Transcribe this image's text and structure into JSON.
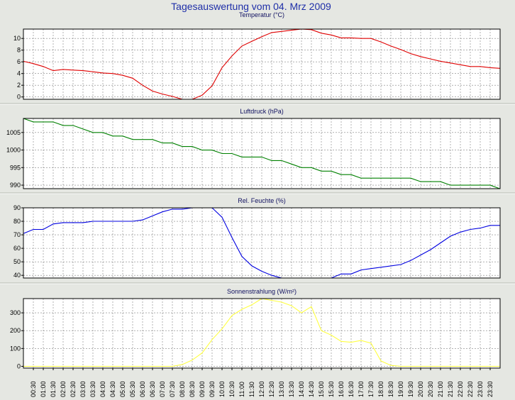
{
  "page": {
    "title": "Tagesauswertung vom 04. Mrz 2009",
    "background": "#e5e7e2",
    "plot_background": "#ffffff",
    "grid_color": "#808080"
  },
  "x_ticks": [
    "00:30",
    "01:00",
    "01:30",
    "02:00",
    "02:30",
    "03:00",
    "03:30",
    "04:00",
    "04:30",
    "05:00",
    "05:30",
    "06:00",
    "06:30",
    "07:00",
    "07:30",
    "08:00",
    "08:30",
    "09:00",
    "09:30",
    "10:00",
    "10:30",
    "11:00",
    "11:30",
    "12:00",
    "12:30",
    "13:00",
    "13:30",
    "14:00",
    "14:30",
    "15:00",
    "15:30",
    "16:00",
    "16:30",
    "17:00",
    "17:30",
    "18:00",
    "18:30",
    "19:00",
    "19:30",
    "20:00",
    "20:30",
    "21:00",
    "21:30",
    "22:00",
    "22:30",
    "23:00",
    "23:30"
  ],
  "chart_data": [
    {
      "type": "line",
      "title": "Temperatur (°C)",
      "color": "#e00000",
      "ylim": [
        -0.4,
        11.6
      ],
      "yticks": [
        0,
        2,
        4,
        6,
        8,
        10
      ],
      "grid": true,
      "x": [
        "00:00",
        "00:30",
        "01:00",
        "01:30",
        "02:00",
        "02:30",
        "03:00",
        "03:30",
        "04:00",
        "04:30",
        "05:00",
        "05:30",
        "06:00",
        "06:30",
        "07:00",
        "07:30",
        "08:00",
        "08:30",
        "09:00",
        "09:30",
        "10:00",
        "10:30",
        "11:00",
        "11:30",
        "12:00",
        "12:30",
        "13:00",
        "13:30",
        "14:00",
        "14:30",
        "15:00",
        "15:30",
        "16:00",
        "16:30",
        "17:00",
        "17:30",
        "18:00",
        "18:30",
        "19:00",
        "19:30",
        "20:00",
        "20:30",
        "21:00",
        "21:30",
        "22:00",
        "22:30",
        "23:00",
        "23:30",
        "23:59"
      ],
      "series": [
        {
          "values": [
            6.1,
            5.7,
            5.2,
            4.5,
            4.7,
            4.6,
            4.5,
            4.3,
            4.1,
            4.0,
            3.7,
            3.2,
            2.0,
            1.0,
            0.5,
            0.1,
            -0.4,
            -0.4,
            0.3,
            1.9,
            5.0,
            7.0,
            8.7,
            9.5,
            10.3,
            11.0,
            11.2,
            11.4,
            11.6,
            11.5,
            10.9,
            10.6,
            10.1,
            10.1,
            10.0,
            10.0,
            9.4,
            8.7,
            8.1,
            7.4,
            6.9,
            6.5,
            6.1,
            5.8,
            5.5,
            5.2,
            5.2,
            5.0,
            4.9
          ]
        }
      ]
    },
    {
      "type": "line",
      "title": "Luftdruck (hPa)",
      "color": "#008000",
      "ylim": [
        989,
        1009
      ],
      "yticks": [
        990,
        995,
        1000,
        1005
      ],
      "grid": true,
      "x": [
        "00:00",
        "00:30",
        "01:00",
        "01:30",
        "02:00",
        "02:30",
        "03:00",
        "03:30",
        "04:00",
        "04:30",
        "05:00",
        "05:30",
        "06:00",
        "06:30",
        "07:00",
        "07:30",
        "08:00",
        "08:30",
        "09:00",
        "09:30",
        "10:00",
        "10:30",
        "11:00",
        "11:30",
        "12:00",
        "12:30",
        "13:00",
        "13:30",
        "14:00",
        "14:30",
        "15:00",
        "15:30",
        "16:00",
        "16:30",
        "17:00",
        "17:30",
        "18:00",
        "18:30",
        "19:00",
        "19:30",
        "20:00",
        "20:30",
        "21:00",
        "21:30",
        "22:00",
        "22:30",
        "23:00",
        "23:30",
        "23:59"
      ],
      "series": [
        {
          "values": [
            1009,
            1008,
            1008,
            1008,
            1007,
            1007,
            1006,
            1005,
            1005,
            1004,
            1004,
            1003,
            1003,
            1003,
            1002,
            1002,
            1001,
            1001,
            1000,
            1000,
            999,
            999,
            998,
            998,
            998,
            997,
            997,
            996,
            995,
            995,
            994,
            994,
            993,
            993,
            992,
            992,
            992,
            992,
            992,
            992,
            991,
            991,
            991,
            990,
            990,
            990,
            990,
            990,
            989
          ]
        }
      ]
    },
    {
      "type": "line",
      "title": "Rel. Feuchte (%)",
      "color": "#0000e0",
      "ylim": [
        38,
        90
      ],
      "yticks": [
        40,
        50,
        60,
        70,
        80,
        90
      ],
      "grid": true,
      "x": [
        "00:00",
        "00:30",
        "01:00",
        "01:30",
        "02:00",
        "02:30",
        "03:00",
        "03:30",
        "04:00",
        "04:30",
        "05:00",
        "05:30",
        "06:00",
        "06:30",
        "07:00",
        "07:30",
        "08:00",
        "08:30",
        "09:00",
        "09:30",
        "10:00",
        "10:30",
        "11:00",
        "11:30",
        "12:00",
        "12:30",
        "13:00",
        "13:30",
        "14:00",
        "14:30",
        "15:00",
        "15:30",
        "16:00",
        "16:30",
        "17:00",
        "17:30",
        "18:00",
        "18:30",
        "19:00",
        "19:30",
        "20:00",
        "20:30",
        "21:00",
        "21:30",
        "22:00",
        "22:30",
        "23:00",
        "23:30",
        "23:59"
      ],
      "series": [
        {
          "values": [
            71,
            74,
            74,
            78,
            79,
            79,
            79,
            80,
            80,
            80,
            80,
            80,
            81,
            84,
            87,
            89,
            89,
            90,
            90,
            90,
            83,
            68,
            54,
            47,
            43,
            40,
            38,
            38,
            38,
            38,
            38,
            38,
            41,
            41,
            44,
            45,
            46,
            47,
            48,
            51,
            55,
            59,
            64,
            69,
            72,
            74,
            75,
            77,
            77
          ]
        }
      ]
    },
    {
      "type": "line",
      "title": "Sonnenstrahlung (W/m²)",
      "color": "#ffff40",
      "ylim": [
        -10,
        380
      ],
      "yticks": [
        0,
        100,
        200,
        300
      ],
      "grid": true,
      "x": [
        "00:00",
        "00:30",
        "01:00",
        "01:30",
        "02:00",
        "02:30",
        "03:00",
        "03:30",
        "04:00",
        "04:30",
        "05:00",
        "05:30",
        "06:00",
        "06:30",
        "07:00",
        "07:30",
        "08:00",
        "08:30",
        "09:00",
        "09:30",
        "10:00",
        "10:30",
        "11:00",
        "11:30",
        "12:00",
        "12:30",
        "13:00",
        "13:30",
        "14:00",
        "14:30",
        "15:00",
        "15:30",
        "16:00",
        "16:30",
        "17:00",
        "17:30",
        "18:00",
        "18:30",
        "19:00",
        "19:30",
        "20:00",
        "20:30",
        "21:00",
        "21:30",
        "22:00",
        "22:30",
        "23:00",
        "23:30",
        "23:59"
      ],
      "series": [
        {
          "values": [
            0,
            0,
            0,
            0,
            0,
            0,
            0,
            0,
            0,
            0,
            0,
            0,
            0,
            0,
            0,
            0,
            10,
            35,
            75,
            150,
            210,
            285,
            320,
            345,
            380,
            370,
            360,
            340,
            300,
            335,
            200,
            175,
            140,
            135,
            145,
            130,
            30,
            5,
            0,
            0,
            0,
            0,
            0,
            0,
            0,
            0,
            0,
            0,
            0
          ]
        }
      ]
    }
  ]
}
